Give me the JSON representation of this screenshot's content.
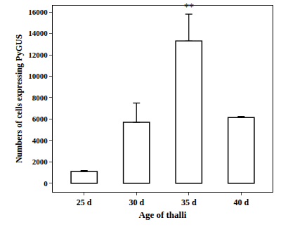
{
  "chart_data": {
    "type": "bar",
    "x_label": "Age of thalli",
    "y_label": "Numbers of cells expressing PyGUS",
    "categories": [
      "25 d",
      "30 d",
      "35 d",
      "40 d"
    ],
    "values": [
      1100,
      5700,
      13300,
      6150
    ],
    "errors": [
      100,
      1800,
      2500,
      100
    ],
    "color": "#ffffff",
    "ylim": [
      -800,
      16600
    ],
    "yticks": [
      0,
      2000,
      4000,
      6000,
      8000,
      10000,
      12000,
      14000,
      16000
    ],
    "grid": false,
    "annotations": [
      {
        "text": "**",
        "category": "35 d"
      }
    ]
  }
}
